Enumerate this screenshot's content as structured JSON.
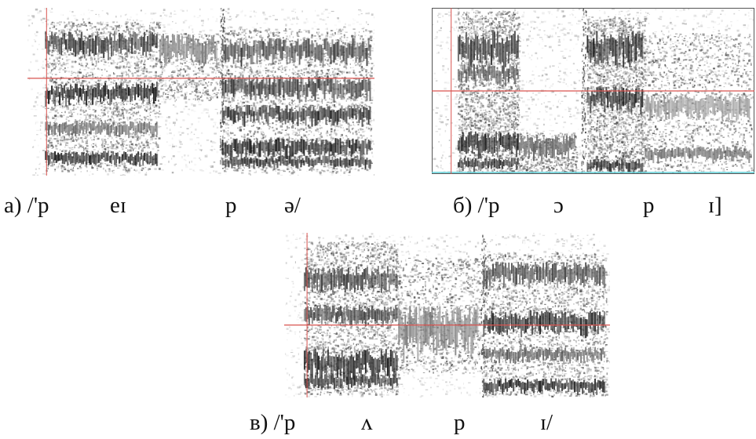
{
  "colors": {
    "marker": "#d9534f",
    "background": "#ffffff",
    "ink": "#1a1a1a",
    "baseline_cyan": "#5fd0d8"
  },
  "panels": [
    {
      "id": "a",
      "label": "а) /'p",
      "segments": [
        "eɪ",
        "p",
        "ə/"
      ]
    },
    {
      "id": "b",
      "label": "б) /'p",
      "segments": [
        "ɔ",
        "p",
        "ɪ]"
      ]
    },
    {
      "id": "c",
      "label": "в) /'p",
      "segments": [
        "ʌ",
        "p",
        "ɪ/"
      ]
    }
  ]
}
